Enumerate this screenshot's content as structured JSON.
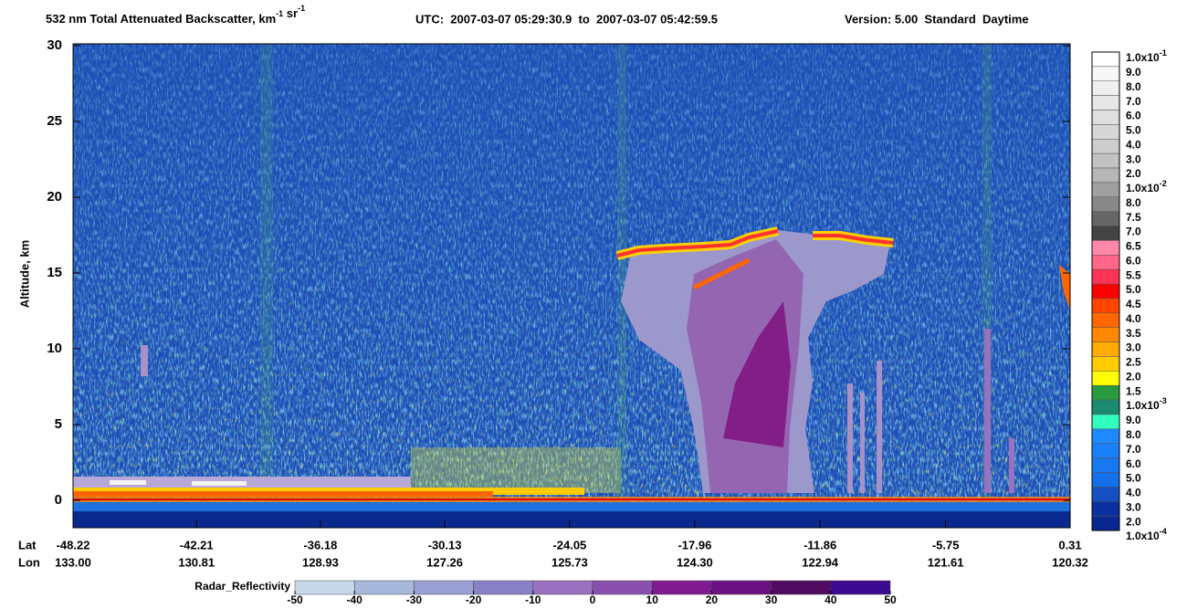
{
  "chart_data": {
    "type": "heatmap",
    "title": {
      "parts": [
        {
          "text": "532 nm Total Attenuated Backscatter, km"
        },
        {
          "sup": "-1"
        },
        {
          "text": " sr"
        },
        {
          "sup": "-1"
        }
      ],
      "utc": "UTC:  2007-03-07 05:29:30.9  to  2007-03-07 05:42:59.5",
      "version": "Version: 5.00  Standard  Daytime"
    },
    "ylabel": "Altitude, km",
    "ylim": [
      -1.8,
      30
    ],
    "yticks": [
      0,
      5,
      10,
      15,
      20,
      25,
      30
    ],
    "xlabel": "Lat",
    "x2label": "Lon",
    "xlim": [
      -48.22,
      0.31
    ],
    "xticks": [
      -48.22,
      -42.21,
      -36.18,
      -30.13,
      -24.05,
      -17.96,
      -11.86,
      -5.75,
      0.31
    ],
    "lon_labels": [
      "133.00",
      "130.81",
      "128.93",
      "127.26",
      "125.73",
      "124.30",
      "122.94",
      "121.61",
      "120.32"
    ],
    "colorbar": {
      "labels": [
        {
          "base": "1.0x10",
          "exp": "-1"
        },
        "9.0",
        "8.0",
        "7.0",
        "6.0",
        "5.0",
        "4.0",
        "3.0",
        "2.0",
        {
          "base": "1.0x10",
          "exp": "-2"
        },
        "8.0",
        "7.5",
        "7.0",
        "6.5",
        "6.0",
        "5.5",
        "5.0",
        "4.5",
        "4.0",
        "3.5",
        "3.0",
        "2.5",
        "2.0",
        "1.5",
        {
          "base": "1.0x10",
          "exp": "-3"
        },
        "9.0",
        "8.0",
        "7.0",
        "6.0",
        "5.0",
        "4.0",
        "3.0",
        "2.0",
        {
          "base": "1.0x10",
          "exp": "-4"
        }
      ],
      "colors": [
        "#ffffff",
        "#f7f7f7",
        "#efefef",
        "#e7e7e7",
        "#dfdfdf",
        "#d7d7d7",
        "#cdcdcd",
        "#c2c2c2",
        "#b6b6b6",
        "#a0a0a0",
        "#888888",
        "#666666",
        "#444444",
        "#ff88aa",
        "#ff6688",
        "#ff3355",
        "#ff0000",
        "#ff4400",
        "#ff6600",
        "#ff8800",
        "#ffaa00",
        "#ffcc00",
        "#ffff00",
        "#2a9a40",
        "#1a8a70",
        "#30ffc0",
        "#1e88ff",
        "#1a80f8",
        "#1878f0",
        "#1470e8",
        "#1450c0",
        "#0a30a0",
        "#082890"
      ]
    },
    "radar": {
      "label": "Radar_Reflectivity",
      "ticks": [
        -50,
        -40,
        -30,
        -20,
        -10,
        0,
        10,
        20,
        30,
        40,
        50
      ],
      "colors": [
        "#c8d8ea",
        "#a8b8dc",
        "#9aa0d4",
        "#8a80c8",
        "#9a70c0",
        "#8a50b0",
        "#801a90",
        "#6a1080",
        "#500a60",
        "#3a0a90"
      ]
    }
  }
}
